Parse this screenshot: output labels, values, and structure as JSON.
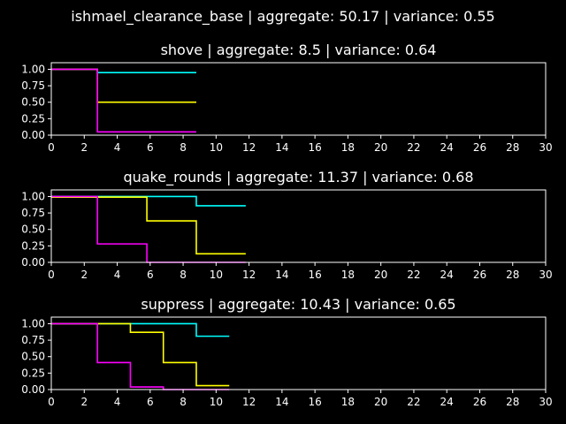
{
  "figure_title": "ishmael_clearance_base | aggregate: 50.17 | variance: 0.55",
  "colors": {
    "background": "#000000",
    "axes": "#ffffff",
    "text": "#ffffff"
  },
  "chart_data": [
    {
      "type": "line",
      "step": "post",
      "title": "shove | aggregate: 8.5 | variance: 0.64",
      "xlim": [
        0,
        30
      ],
      "ylim": [
        0,
        1.1
      ],
      "xticks": [
        "0",
        "2",
        "4",
        "6",
        "8",
        "10",
        "12",
        "14",
        "16",
        "18",
        "20",
        "22",
        "24",
        "26",
        "28",
        "30"
      ],
      "yticks": [
        "0.00",
        "0.25",
        "0.50",
        "0.75",
        "1.00"
      ],
      "series": [
        {
          "color": "#00ffff",
          "x": [
            0,
            2.8,
            8.8
          ],
          "y": [
            1.0,
            0.95,
            0.95
          ]
        },
        {
          "color": "#ffff00",
          "x": [
            0,
            2.8,
            8.8
          ],
          "y": [
            1.0,
            0.5,
            0.5
          ]
        },
        {
          "color": "#ff00ff",
          "x": [
            0,
            2.8,
            8.8
          ],
          "y": [
            1.0,
            0.05,
            0.05
          ]
        }
      ]
    },
    {
      "type": "line",
      "step": "post",
      "title": "quake_rounds | aggregate: 11.37 | variance: 0.68",
      "xlim": [
        0,
        30
      ],
      "ylim": [
        0,
        1.1
      ],
      "xticks": [
        "0",
        "2",
        "4",
        "6",
        "8",
        "10",
        "12",
        "14",
        "16",
        "18",
        "20",
        "22",
        "24",
        "26",
        "28",
        "30"
      ],
      "yticks": [
        "0.00",
        "0.25",
        "0.50",
        "0.75",
        "1.00"
      ],
      "series": [
        {
          "color": "#00ffff",
          "x": [
            0,
            8.8,
            11.8
          ],
          "y": [
            1.0,
            0.86,
            0.86
          ]
        },
        {
          "color": "#ffff00",
          "x": [
            0,
            5.8,
            8.8,
            11.8
          ],
          "y": [
            0.99,
            0.63,
            0.13,
            0.13
          ]
        },
        {
          "color": "#ff00ff",
          "x": [
            0,
            2.8,
            5.8,
            11.8
          ],
          "y": [
            1.0,
            0.28,
            0.0,
            0.0
          ]
        }
      ]
    },
    {
      "type": "line",
      "step": "post",
      "title": "suppress | aggregate: 10.43 | variance: 0.65",
      "xlim": [
        0,
        30
      ],
      "ylim": [
        0,
        1.1
      ],
      "xticks": [
        "0",
        "2",
        "4",
        "6",
        "8",
        "10",
        "12",
        "14",
        "16",
        "18",
        "20",
        "22",
        "24",
        "26",
        "28",
        "30"
      ],
      "yticks": [
        "0.00",
        "0.25",
        "0.50",
        "0.75",
        "1.00"
      ],
      "series": [
        {
          "color": "#00ffff",
          "x": [
            0,
            8.8,
            10.8
          ],
          "y": [
            1.0,
            0.81,
            0.81
          ]
        },
        {
          "color": "#ffff00",
          "x": [
            0,
            4.8,
            6.8,
            8.8,
            10.8
          ],
          "y": [
            1.0,
            0.87,
            0.41,
            0.06,
            0.06
          ]
        },
        {
          "color": "#ff00ff",
          "x": [
            0,
            2.8,
            4.8,
            6.8,
            10.8
          ],
          "y": [
            1.0,
            0.41,
            0.04,
            0.0,
            0.0
          ]
        }
      ]
    }
  ]
}
